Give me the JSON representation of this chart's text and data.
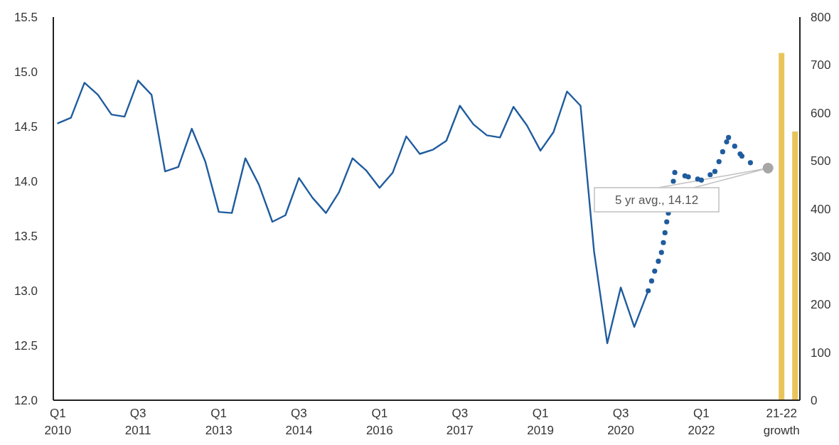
{
  "chart_data": {
    "type": "line",
    "xlim": [
      "2010-01-01",
      "2023-12-04"
    ],
    "xticks": [
      {
        "value": "2010-02",
        "label": "Q1\n2010"
      },
      {
        "value": "2011-08",
        "label": "Q3\n2011"
      },
      {
        "value": "2013-02",
        "label": "Q1\n2013"
      },
      {
        "value": "2014-08",
        "label": "Q3\n2014"
      },
      {
        "value": "2016-02",
        "label": "Q1\n2016"
      },
      {
        "value": "2017-08",
        "label": "Q3\n2017"
      },
      {
        "value": "2019-02",
        "label": "Q1\n2019"
      },
      {
        "value": "2020-08",
        "label": "Q3\n2020"
      },
      {
        "value": "2022-02",
        "label": "Q1\n2022"
      },
      {
        "value": "2023-08",
        "label": "21-22\ngrowth"
      }
    ],
    "ylim": [
      12.0,
      15.5
    ],
    "yticks": [
      {
        "value": 12,
        "label": "12.0"
      },
      {
        "value": 12.5,
        "label": "12.5"
      },
      {
        "value": 13,
        "label": "13.0"
      },
      {
        "value": 13.5,
        "label": "13.5"
      },
      {
        "value": 14,
        "label": "14.0"
      },
      {
        "value": 14.5,
        "label": "14.5"
      },
      {
        "value": 15,
        "label": "15.0"
      },
      {
        "value": 15.5,
        "label": "15.5"
      }
    ],
    "y2lim": [
      0,
      800
    ],
    "y2ticks": [
      0,
      100,
      200,
      300,
      400,
      500,
      600,
      700,
      800
    ],
    "series": [
      {
        "color": "#1f5c9e",
        "line_style": "solid",
        "x": [
          "2010-02",
          "2010-05",
          "2010-08",
          "2010-11",
          "2011-02",
          "2011-05",
          "2011-08",
          "2011-11",
          "2012-02",
          "2012-05",
          "2012-08",
          "2012-11",
          "2013-02",
          "2013-05",
          "2013-08",
          "2013-11",
          "2014-02",
          "2014-05",
          "2014-08",
          "2014-11",
          "2015-02",
          "2015-05",
          "2015-08",
          "2015-11",
          "2016-02",
          "2016-05",
          "2016-08",
          "2016-11",
          "2017-02",
          "2017-05",
          "2017-08",
          "2017-11",
          "2018-02",
          "2018-05",
          "2018-08",
          "2018-11",
          "2019-02",
          "2019-05",
          "2019-08",
          "2019-11",
          "2020-02",
          "2020-05",
          "2020-08",
          "2020-11",
          "2021-02"
        ],
        "values": [
          14.53,
          14.58,
          14.9,
          14.79,
          14.61,
          14.59,
          14.92,
          14.79,
          14.09,
          14.13,
          14.48,
          14.18,
          13.72,
          13.71,
          14.21,
          13.97,
          13.63,
          13.69,
          14.03,
          13.85,
          13.71,
          13.9,
          14.21,
          14.1,
          13.94,
          14.08,
          14.41,
          14.25,
          14.29,
          14.37,
          14.69,
          14.52,
          14.42,
          14.4,
          14.68,
          14.51,
          14.28,
          14.45,
          14.82,
          14.69,
          13.36,
          12.52,
          13.03,
          12.67,
          12.99
        ]
      },
      {
        "type": "scatter",
        "color": "#1f5c9e",
        "marker": "circle",
        "x": [
          "2021-02-04",
          "2021-02-27",
          "2021-03-20",
          "2021-04-14",
          "2021-05-05",
          "2021-05-18",
          "2021-05-29",
          "2021-06-10",
          "2021-06-21",
          "2021-07-25",
          "2021-08-04",
          "2021-10-12",
          "2021-11-04",
          "2022-01-07",
          "2022-02-01",
          "2022-04-02",
          "2022-05-04",
          "2022-06-01",
          "2022-06-26",
          "2022-07-23",
          "2022-08-05",
          "2022-09-16",
          "2022-10-23",
          "2022-11-04",
          "2023-01-01"
        ],
        "values": [
          13.0,
          13.09,
          13.18,
          13.27,
          13.35,
          13.44,
          13.53,
          13.63,
          13.71,
          14.0,
          14.08,
          14.05,
          14.04,
          14.02,
          14.01,
          14.06,
          14.09,
          14.18,
          14.27,
          14.36,
          14.4,
          14.32,
          14.25,
          14.23,
          14.17
        ]
      },
      {
        "type": "scatter",
        "color": "#a6a6a6",
        "marker": "circle",
        "x": [
          "2023-05"
        ],
        "values": [
          14.12
        ]
      },
      {
        "type": "bar",
        "axis": "y2",
        "color": "#e8c45a",
        "x": [
          "2023-08",
          "2023-11"
        ],
        "values": [
          725,
          561
        ]
      }
    ],
    "annotations": [
      "5 yr avg., 14.12"
    ]
  }
}
